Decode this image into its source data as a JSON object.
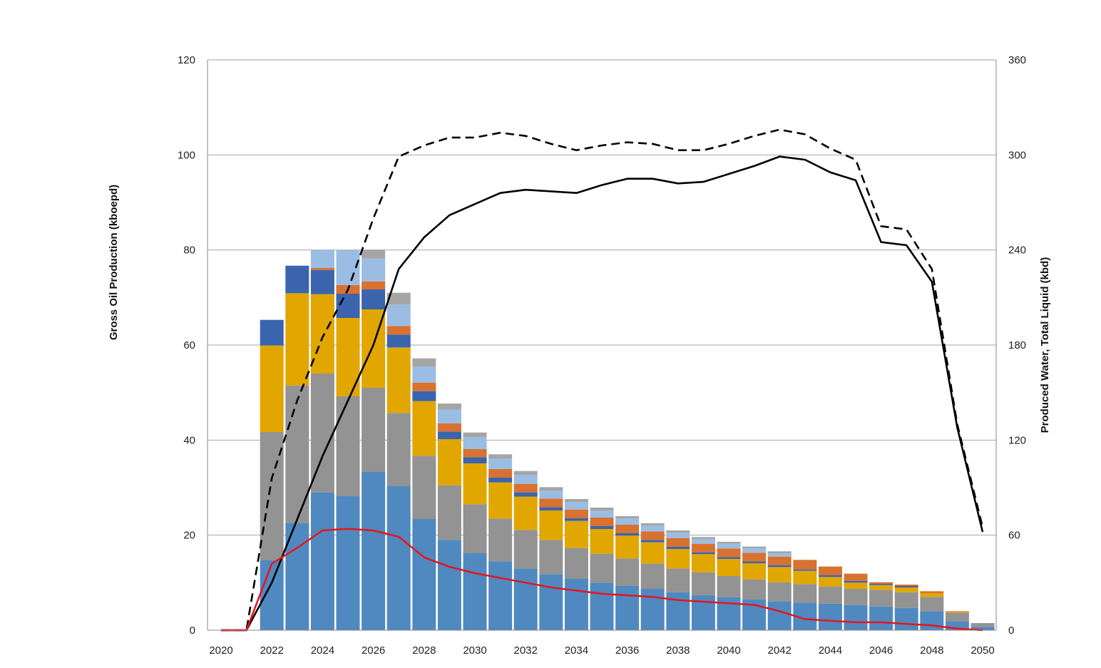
{
  "chart_data": {
    "type": "bar",
    "title": "",
    "ylabel": "Gross Oil Production (kboepd)",
    "y2label": "Produced Water, Total Liquid (kbd)",
    "ylim": [
      0,
      120
    ],
    "y2lim": [
      0,
      360
    ],
    "yticks": [
      "0",
      "20",
      "40",
      "60",
      "80",
      "100",
      "120"
    ],
    "y2ticks": [
      "0",
      "60",
      "120",
      "180",
      "240",
      "300",
      "360"
    ],
    "xtick_labels": [
      "2020",
      "2022",
      "2024",
      "2026",
      "2028",
      "2030",
      "2032",
      "2034",
      "2036",
      "2038",
      "2040",
      "2042",
      "2044",
      "2046",
      "2048",
      "2050"
    ],
    "grid": "horizontal",
    "legend": "none",
    "x": [
      2020,
      2021,
      2022,
      2023,
      2024,
      2025,
      2026,
      2027,
      2028,
      2029,
      2030,
      2031,
      2032,
      2033,
      2034,
      2035,
      2036,
      2037,
      2038,
      2039,
      2040,
      2041,
      2042,
      2043,
      2044,
      2045,
      2046,
      2047,
      2048,
      2049,
      2050
    ],
    "series": [
      {
        "color": "#4f89c0",
        "values": [
          0,
          0,
          14.7,
          22.5,
          29.0,
          28.2,
          33.3,
          30.3,
          23.4,
          19.0,
          16.2,
          14.5,
          13.0,
          11.8,
          10.8,
          10.0,
          9.3,
          8.7,
          8.0,
          7.4,
          6.9,
          6.5,
          6.1,
          5.8,
          5.6,
          5.3,
          5.0,
          4.7,
          4.0,
          1.9,
          0.7
        ]
      },
      {
        "color": "#939393",
        "values": [
          0,
          0,
          27.0,
          29.0,
          25.0,
          21.0,
          17.7,
          15.4,
          13.3,
          11.5,
          10.3,
          9.0,
          8.1,
          7.2,
          6.5,
          6.1,
          5.8,
          5.3,
          5.0,
          4.8,
          4.5,
          4.2,
          4.0,
          3.9,
          3.6,
          3.4,
          3.5,
          3.3,
          3.0,
          1.8,
          0.8
        ]
      },
      {
        "color": "#e2a600",
        "values": [
          0,
          0,
          18.2,
          19.4,
          16.7,
          16.5,
          16.5,
          13.8,
          11.5,
          9.7,
          8.6,
          7.6,
          7.0,
          6.2,
          5.7,
          5.2,
          4.8,
          4.5,
          4.1,
          3.8,
          3.6,
          3.4,
          3.2,
          2.8,
          2.0,
          1.3,
          1.0,
          1.0,
          0.8,
          0.2,
          0
        ]
      },
      {
        "color": "#3a64ae",
        "values": [
          0,
          0,
          5.4,
          5.8,
          5.1,
          5.1,
          4.2,
          2.7,
          2.1,
          1.6,
          1.3,
          1.0,
          0.9,
          0.7,
          0.6,
          0.6,
          0.5,
          0.5,
          0.5,
          0.4,
          0.4,
          0.4,
          0.4,
          0.3,
          0.4,
          0.4,
          0.3,
          0.3,
          0,
          0,
          0
        ]
      },
      {
        "color": "#d9712f",
        "values": [
          0,
          0,
          0,
          0,
          0.4,
          1.8,
          1.7,
          1.8,
          1.8,
          1.7,
          1.7,
          1.8,
          1.8,
          1.8,
          1.8,
          1.8,
          1.8,
          1.8,
          1.8,
          1.8,
          1.8,
          1.8,
          1.8,
          2.0,
          1.8,
          1.5,
          0.3,
          0.3,
          0.4,
          0.1,
          0
        ]
      },
      {
        "color": "#9bbde3",
        "values": [
          0,
          0,
          0,
          0,
          3.8,
          7.4,
          4.8,
          4.5,
          3.4,
          2.9,
          2.5,
          2.2,
          1.9,
          1.7,
          1.6,
          1.5,
          1.3,
          1.2,
          1.1,
          1.0,
          1.0,
          0.9,
          0.7,
          0,
          0,
          0,
          0,
          0,
          0,
          0,
          0
        ]
      },
      {
        "color": "#a5a5a5",
        "values": [
          0,
          0,
          0,
          0,
          0,
          0,
          1.8,
          2.5,
          1.7,
          1.3,
          1.0,
          0.9,
          0.8,
          0.7,
          0.6,
          0.6,
          0.5,
          0.5,
          0.5,
          0.4,
          0.4,
          0.4,
          0.4,
          0,
          0,
          0,
          0,
          0,
          0,
          0,
          0
        ]
      }
    ],
    "lines": [
      {
        "axis": "right",
        "style": "dashed",
        "color": "#000000",
        "values": [
          0,
          0,
          96,
          145,
          185,
          215,
          260,
          299,
          306,
          311,
          311,
          314,
          312,
          307,
          303,
          306,
          308,
          307,
          303,
          303,
          307,
          312,
          316,
          313,
          304,
          297,
          255,
          253,
          228,
          130,
          65
        ]
      },
      {
        "axis": "right",
        "style": "solid",
        "color": "#000000",
        "values": [
          0,
          0,
          30,
          70,
          110,
          145,
          180,
          228,
          248,
          262,
          269,
          276,
          278,
          277,
          276,
          281,
          285,
          285,
          282,
          283,
          288,
          293,
          299,
          297,
          289,
          284,
          245,
          243,
          220,
          128,
          62
        ]
      },
      {
        "axis": "right",
        "style": "solid",
        "color": "#e8141b",
        "values": [
          0,
          0,
          42,
          52,
          63,
          64,
          63,
          59,
          46,
          40,
          36,
          33,
          30,
          27,
          25,
          23,
          22,
          21,
          19,
          18,
          17,
          16,
          12,
          7,
          6,
          5,
          5,
          4,
          3,
          1,
          0
        ]
      }
    ]
  }
}
